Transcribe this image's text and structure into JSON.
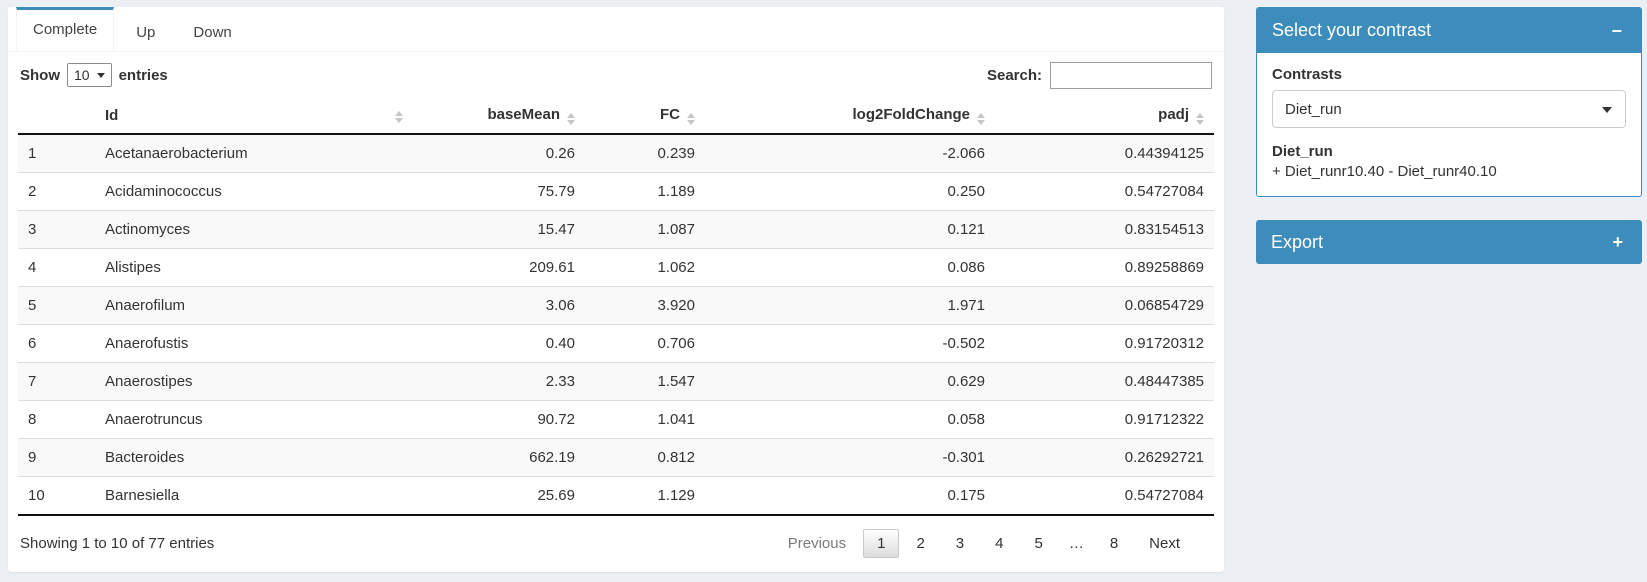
{
  "colors": {
    "primary": "#3c8dbc",
    "page_bg": "#ecf0f5",
    "stripe": "#f9f9f9",
    "table_border_dark": "#111111",
    "row_border": "#dddddd"
  },
  "icons": {
    "sort": "up-down-triangles",
    "select_caret": "caret-down",
    "page_length_caret": "caret-down",
    "collapse": "minus",
    "expand": "plus"
  },
  "tabs": [
    {
      "label": "Complete",
      "active": true
    },
    {
      "label": "Up",
      "active": false
    },
    {
      "label": "Down",
      "active": false
    }
  ],
  "controls": {
    "show_label": "Show",
    "page_length": "10",
    "entries_label": "entries",
    "search_label": "Search:",
    "search_value": ""
  },
  "table": {
    "columns": [
      {
        "label": "",
        "key": "index",
        "align": "left",
        "sortable": false
      },
      {
        "label": "Id",
        "key": "id",
        "align": "left",
        "sortable": true
      },
      {
        "label": "baseMean",
        "key": "basemean",
        "align": "right",
        "sortable": true
      },
      {
        "label": "FC",
        "key": "fc",
        "align": "right",
        "sortable": true
      },
      {
        "label": "log2FoldChange",
        "key": "log2foldchange",
        "align": "right",
        "sortable": true
      },
      {
        "label": "padj",
        "key": "padj",
        "align": "right",
        "sortable": true
      }
    ],
    "rows": [
      [
        "1",
        "Acetanaerobacterium",
        "0.26",
        "0.239",
        "-2.066",
        "0.44394125"
      ],
      [
        "2",
        "Acidaminococcus",
        "75.79",
        "1.189",
        "0.250",
        "0.54727084"
      ],
      [
        "3",
        "Actinomyces",
        "15.47",
        "1.087",
        "0.121",
        "0.83154513"
      ],
      [
        "4",
        "Alistipes",
        "209.61",
        "1.062",
        "0.086",
        "0.89258869"
      ],
      [
        "5",
        "Anaerofilum",
        "3.06",
        "3.920",
        "1.971",
        "0.06854729"
      ],
      [
        "6",
        "Anaerofustis",
        "0.40",
        "0.706",
        "-0.502",
        "0.91720312"
      ],
      [
        "7",
        "Anaerostipes",
        "2.33",
        "1.547",
        "0.629",
        "0.48447385"
      ],
      [
        "8",
        "Anaerotruncus",
        "90.72",
        "1.041",
        "0.058",
        "0.91712322"
      ],
      [
        "9",
        "Bacteroides",
        "662.19",
        "0.812",
        "-0.301",
        "0.26292721"
      ],
      [
        "10",
        "Barnesiella",
        "25.69",
        "1.129",
        "0.175",
        "0.54727084"
      ]
    ],
    "info": "Showing 1 to 10 of 77 entries",
    "pagination": {
      "previous_label": "Previous",
      "pages": [
        "1",
        "2",
        "3",
        "4",
        "5",
        "…",
        "8"
      ],
      "current_page": "1",
      "next_label": "Next"
    }
  },
  "contrast_panel": {
    "title": "Select your contrast",
    "collapse_icon": "−",
    "contrasts_label": "Contrasts",
    "selected_contrast": "Diet_run",
    "contrast_name": "Diet_run",
    "contrast_formula": "+ Diet_runr10.40 - Diet_runr40.10"
  },
  "export_panel": {
    "title": "Export",
    "expand_icon": "+"
  }
}
